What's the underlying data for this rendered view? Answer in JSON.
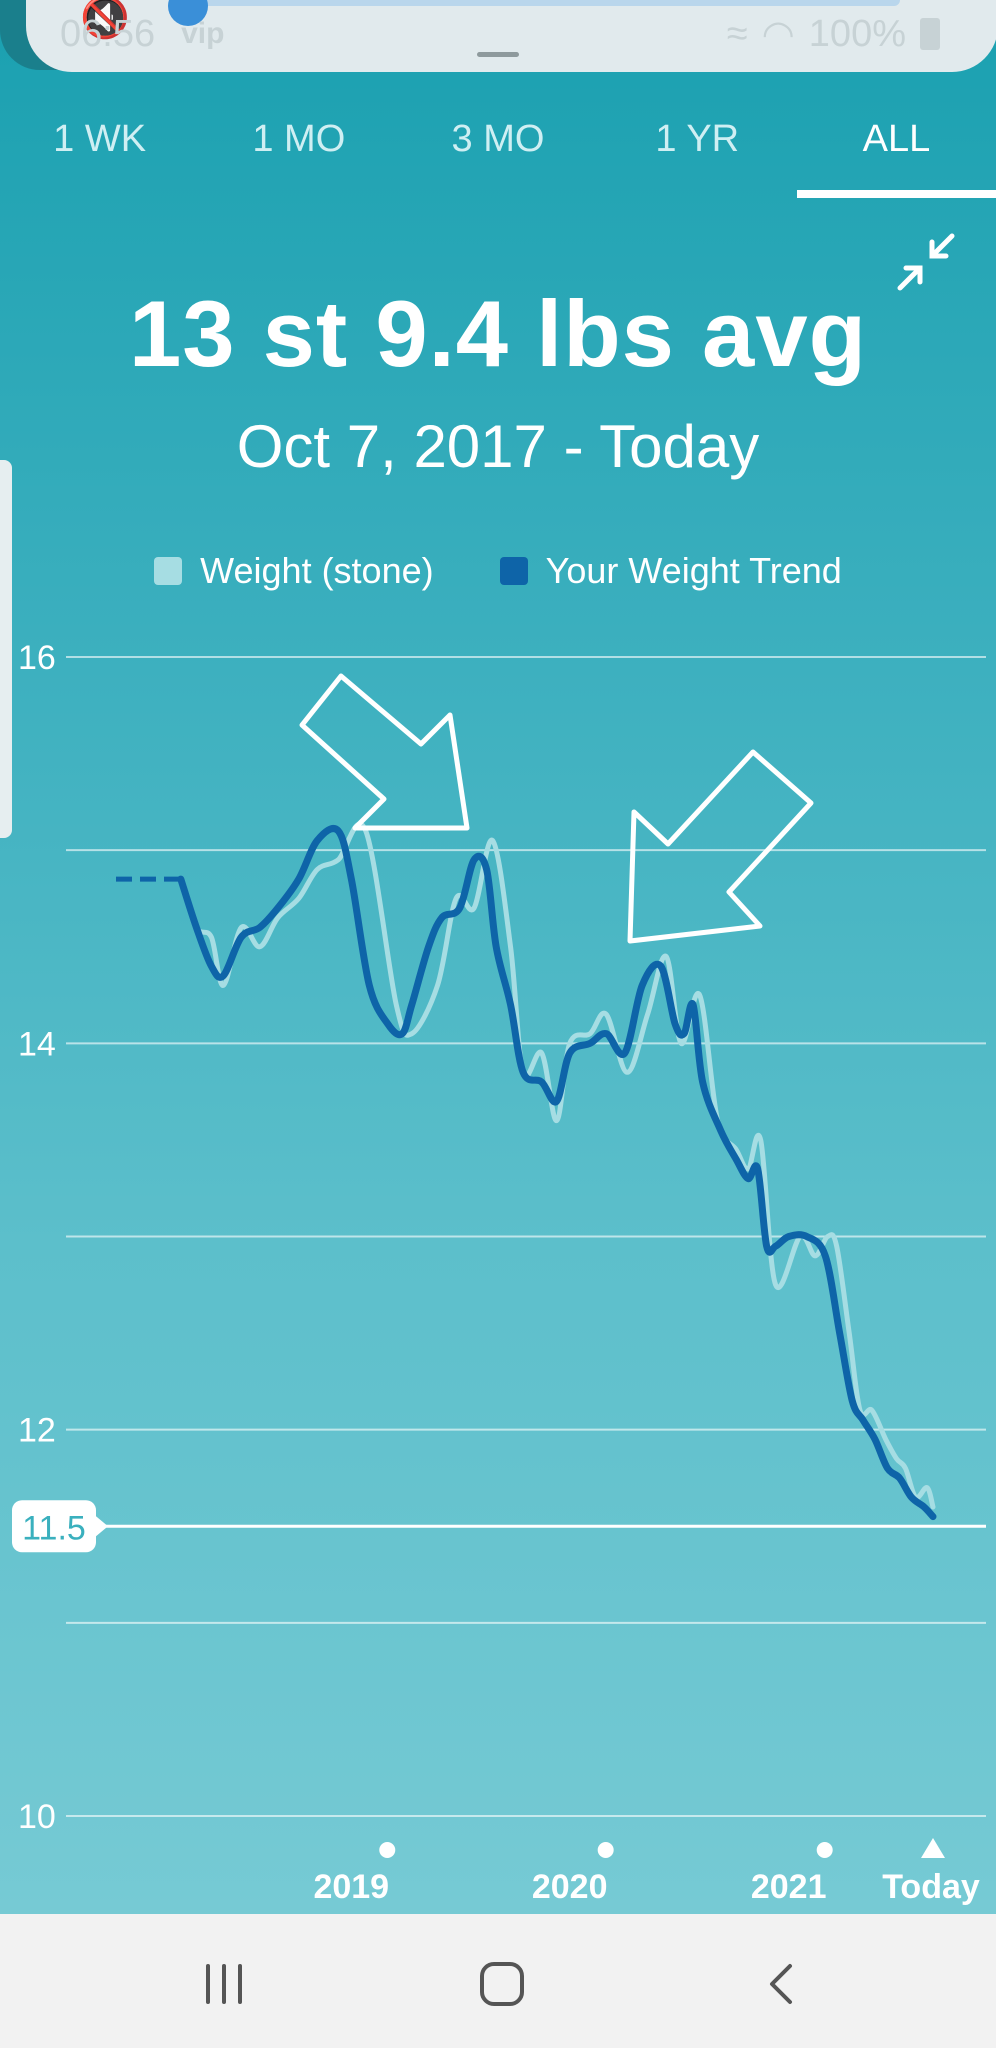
{
  "status_bar": {
    "time": "06:56",
    "vip_label": "vip",
    "battery": "100%"
  },
  "tabs": [
    {
      "label": "1 WK",
      "active": false
    },
    {
      "label": "1 MO",
      "active": false
    },
    {
      "label": "3 MO",
      "active": false
    },
    {
      "label": "1 YR",
      "active": false
    },
    {
      "label": "ALL",
      "active": true
    }
  ],
  "summary": {
    "average": "13 st 9.4 lbs avg",
    "range": "Oct 7, 2017 - Today"
  },
  "colors": {
    "weight": "#a6dde3",
    "trend": "#0e64a8",
    "accent": "#1aa0b0"
  },
  "chart_data": {
    "type": "line",
    "ylim": [
      10,
      16
    ],
    "yticks": [
      "16",
      "14",
      "12",
      "10"
    ],
    "goal_value": 11.5,
    "goal_label": "11.5",
    "xticks": [
      "2019",
      "2020",
      "2021",
      "Today"
    ],
    "xrange": [
      "2017-10-07",
      "2021-06-30"
    ],
    "xtick_dates": [
      "2018-12-31",
      "2019-12-31",
      "2020-12-31",
      "2021-06-30"
    ],
    "grid": true,
    "legend_position": "top-center",
    "series": [
      {
        "name": "Weight (stone)",
        "dates": [
          "2018-01-20",
          "2018-02-15",
          "2018-03-12",
          "2018-04-01",
          "2018-05-01",
          "2018-06-01",
          "2018-07-01",
          "2018-08-05",
          "2018-09-05",
          "2018-10-10",
          "2018-11-25",
          "2019-01-15",
          "2019-02-10",
          "2019-03-25",
          "2019-04-25",
          "2019-05-25",
          "2019-06-25",
          "2019-07-25",
          "2019-08-15",
          "2019-09-15",
          "2019-10-10",
          "2019-11-01",
          "2019-12-05",
          "2020-01-01",
          "2020-02-05",
          "2020-03-10",
          "2020-04-10",
          "2020-05-05",
          "2020-06-05",
          "2020-07-05",
          "2020-08-05",
          "2020-08-25",
          "2020-09-15",
          "2020-10-10",
          "2020-11-20",
          "2020-12-15",
          "2021-01-05",
          "2021-01-20",
          "2021-02-10",
          "2021-02-28",
          "2021-03-20",
          "2021-04-12",
          "2021-04-30",
          "2021-05-15",
          "2021-06-01",
          "2021-06-20",
          "2021-06-30"
        ],
        "values": [
          14.85,
          14.6,
          14.55,
          14.3,
          14.6,
          14.5,
          14.65,
          14.75,
          14.9,
          14.95,
          15.1,
          14.2,
          14.05,
          14.3,
          14.75,
          14.7,
          15.05,
          14.5,
          13.85,
          13.95,
          13.6,
          14.0,
          14.05,
          14.15,
          13.85,
          14.15,
          14.45,
          14.0,
          14.25,
          13.6,
          13.45,
          13.35,
          13.5,
          12.75,
          13.0,
          12.9,
          13.0,
          12.95,
          12.5,
          12.1,
          12.1,
          11.95,
          11.85,
          11.8,
          11.65,
          11.7,
          11.6
        ]
      },
      {
        "name": "Your Weight Trend",
        "dates": [
          "2018-01-20",
          "2018-02-15",
          "2018-03-12",
          "2018-04-01",
          "2018-05-01",
          "2018-06-01",
          "2018-07-01",
          "2018-08-05",
          "2018-09-05",
          "2018-10-10",
          "2018-11-01",
          "2018-12-01",
          "2019-01-01",
          "2019-01-25",
          "2019-02-10",
          "2019-03-10",
          "2019-04-01",
          "2019-05-01",
          "2019-05-25",
          "2019-06-15",
          "2019-07-01",
          "2019-07-25",
          "2019-08-15",
          "2019-09-15",
          "2019-10-10",
          "2019-11-01",
          "2019-12-05",
          "2020-01-01",
          "2020-02-01",
          "2020-03-01",
          "2020-04-01",
          "2020-04-25",
          "2020-05-10",
          "2020-05-25",
          "2020-06-10",
          "2020-07-10",
          "2020-08-05",
          "2020-08-25",
          "2020-09-10",
          "2020-09-25",
          "2020-10-10",
          "2020-11-01",
          "2020-12-01",
          "2021-01-01",
          "2021-01-25",
          "2021-02-15",
          "2021-03-05",
          "2021-03-25",
          "2021-04-15",
          "2021-05-05",
          "2021-05-25",
          "2021-06-15",
          "2021-06-30"
        ],
        "values": [
          14.85,
          14.6,
          14.4,
          14.35,
          14.55,
          14.6,
          14.7,
          14.85,
          15.05,
          15.1,
          14.85,
          14.3,
          14.1,
          14.05,
          14.2,
          14.5,
          14.65,
          14.7,
          14.95,
          14.9,
          14.5,
          14.2,
          13.85,
          13.8,
          13.7,
          13.95,
          14.0,
          14.05,
          13.95,
          14.3,
          14.4,
          14.1,
          14.05,
          14.2,
          13.8,
          13.55,
          13.4,
          13.3,
          13.35,
          12.95,
          12.95,
          13.0,
          13.0,
          12.9,
          12.5,
          12.15,
          12.05,
          11.95,
          11.8,
          11.75,
          11.65,
          11.6,
          11.55
        ]
      }
    ],
    "annotations": [
      "arrow pointing to peak near 2019-09",
      "arrow pointing to peak near 2020-05"
    ]
  }
}
